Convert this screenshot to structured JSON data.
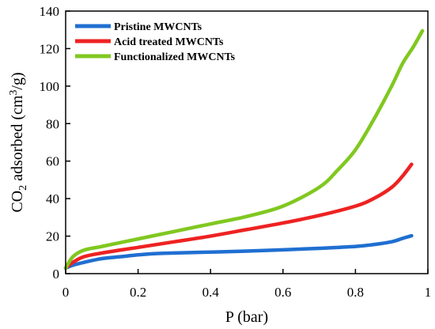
{
  "chart_data": {
    "type": "line",
    "xlabel": "P (bar)",
    "ylabel_parts": {
      "pre": "CO",
      "sub": "2",
      "mid": " adsorbed (cm",
      "sup": "3",
      "post": "/g)"
    },
    "xlim": [
      0,
      1
    ],
    "ylim": [
      0,
      140
    ],
    "xticks": [
      0,
      0.2,
      0.4,
      0.6,
      0.8,
      1
    ],
    "xtick_labels": [
      "0",
      "0.2",
      "0.4",
      "0.6",
      "0.8",
      "1"
    ],
    "yticks": [
      0,
      20,
      40,
      60,
      80,
      100,
      120,
      140
    ],
    "ytick_labels": [
      "0",
      "20",
      "40",
      "60",
      "80",
      "100",
      "120",
      "140"
    ],
    "grid": false,
    "legend_position": "top-left",
    "series": [
      {
        "name": "Pristine MWCNTs",
        "color": "#1f6fd1",
        "points": [
          [
            0.0,
            3
          ],
          [
            0.02,
            4.5
          ],
          [
            0.05,
            6
          ],
          [
            0.1,
            8
          ],
          [
            0.15,
            9
          ],
          [
            0.2,
            10
          ],
          [
            0.25,
            10.7
          ],
          [
            0.3,
            11
          ],
          [
            0.4,
            11.5
          ],
          [
            0.5,
            12
          ],
          [
            0.6,
            12.7
          ],
          [
            0.7,
            13.5
          ],
          [
            0.8,
            14.5
          ],
          [
            0.85,
            15.5
          ],
          [
            0.9,
            17
          ],
          [
            0.93,
            18.8
          ],
          [
            0.955,
            20.2
          ]
        ]
      },
      {
        "name": "Acid treated MWCNTs",
        "color": "#ee2222",
        "points": [
          [
            0.0,
            3
          ],
          [
            0.02,
            6
          ],
          [
            0.05,
            9
          ],
          [
            0.1,
            11
          ],
          [
            0.2,
            14
          ],
          [
            0.3,
            17
          ],
          [
            0.4,
            20
          ],
          [
            0.5,
            23.5
          ],
          [
            0.6,
            27
          ],
          [
            0.7,
            31
          ],
          [
            0.8,
            36
          ],
          [
            0.85,
            40
          ],
          [
            0.9,
            46
          ],
          [
            0.93,
            52
          ],
          [
            0.955,
            58.3
          ]
        ]
      },
      {
        "name": "Functionalized MWCNTs",
        "color": "#80c820",
        "points": [
          [
            0.0,
            3
          ],
          [
            0.02,
            9
          ],
          [
            0.05,
            12.5
          ],
          [
            0.1,
            14.5
          ],
          [
            0.2,
            18.5
          ],
          [
            0.3,
            22.5
          ],
          [
            0.4,
            26.5
          ],
          [
            0.5,
            30.5
          ],
          [
            0.6,
            36
          ],
          [
            0.7,
            46
          ],
          [
            0.75,
            55
          ],
          [
            0.8,
            66
          ],
          [
            0.85,
            82
          ],
          [
            0.9,
            100
          ],
          [
            0.93,
            112
          ],
          [
            0.96,
            121
          ],
          [
            0.985,
            129.5
          ]
        ]
      }
    ]
  }
}
